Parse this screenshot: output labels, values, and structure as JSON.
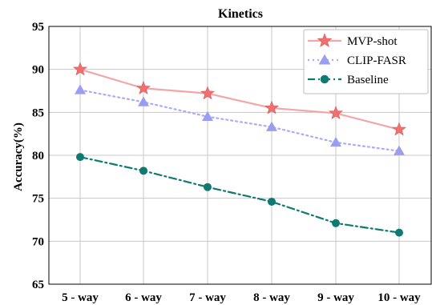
{
  "chart_data": {
    "type": "line",
    "title": "Kinetics",
    "xlabel": "",
    "ylabel": "Accuracy(%)",
    "categories": [
      "5 - way",
      "6 - way",
      "7 - way",
      "8 - way",
      "9 - way",
      "10 - way"
    ],
    "ylim": [
      65,
      95
    ],
    "yticks": [
      65,
      70,
      75,
      80,
      85,
      90,
      95
    ],
    "grid": true,
    "legend_position": "top-right",
    "series": [
      {
        "name": "MVP-shot",
        "values": [
          90.0,
          87.8,
          87.2,
          85.5,
          84.9,
          83.0
        ],
        "color": "#f4a6a6",
        "marker_color": "#f07070",
        "marker": "star",
        "line_style": "solid"
      },
      {
        "name": "CLIP-FASR",
        "values": [
          87.6,
          86.2,
          84.5,
          83.3,
          81.5,
          80.5
        ],
        "color": "#a9acf3",
        "marker_color": "#9b9ef0",
        "marker": "triangle",
        "line_style": "dotted"
      },
      {
        "name": "Baseline",
        "values": [
          79.8,
          78.2,
          76.3,
          74.6,
          72.1,
          71.0
        ],
        "color": "#0e7a72",
        "marker_color": "#0e7a72",
        "marker": "circle",
        "line_style": "dashdot"
      }
    ]
  }
}
